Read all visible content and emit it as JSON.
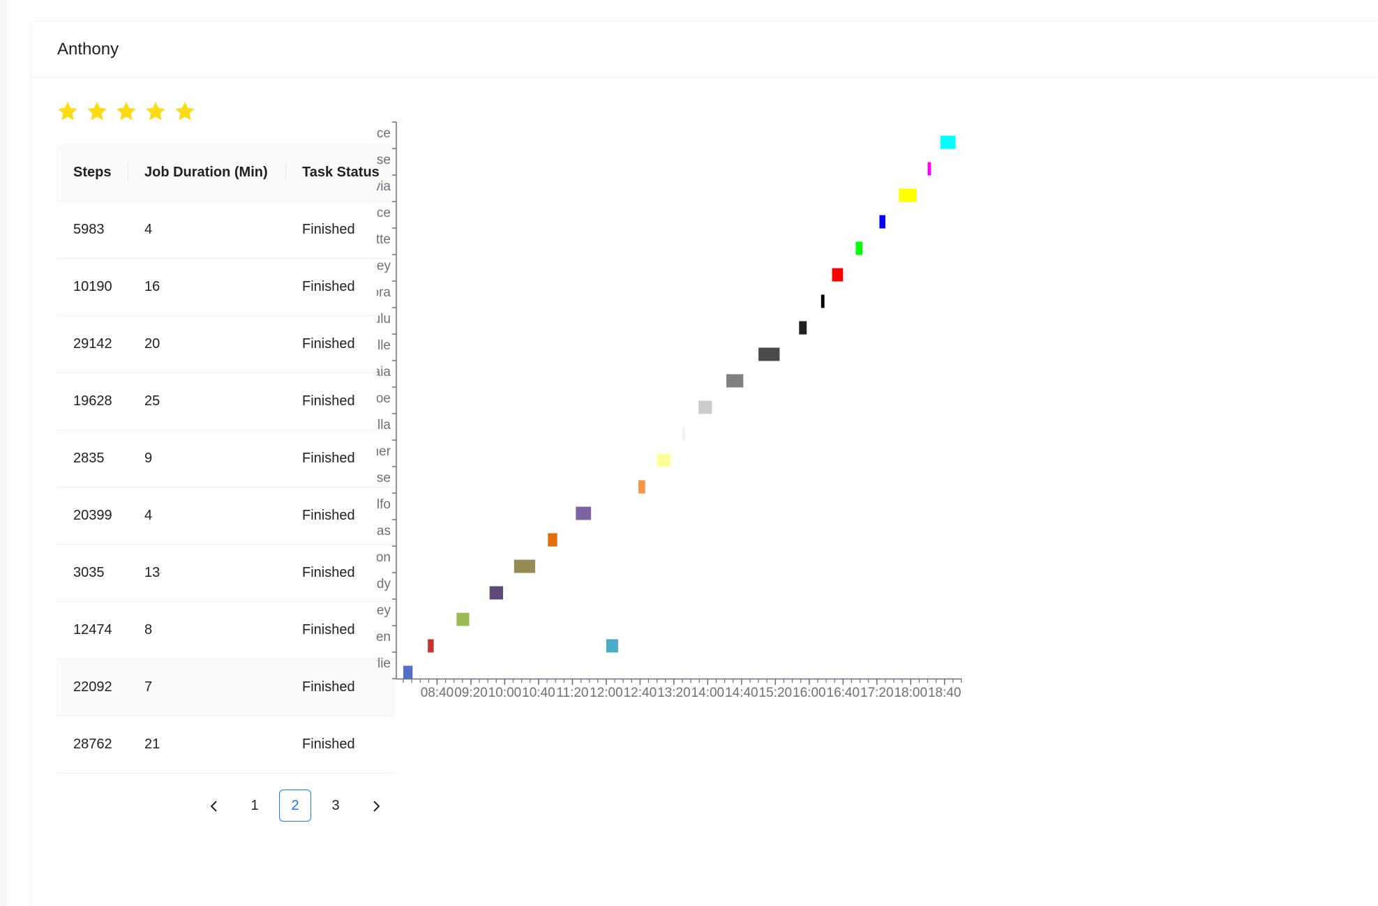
{
  "card": {
    "title": "Anthony"
  },
  "rating": {
    "value": 5,
    "max": 5,
    "color": "#fadb14"
  },
  "table": {
    "columns": [
      "Steps",
      "Job Duration (Min)",
      "Task Status"
    ],
    "rows": [
      [
        "5983",
        "4",
        "Finished"
      ],
      [
        "10190",
        "16",
        "Finished"
      ],
      [
        "29142",
        "20",
        "Finished"
      ],
      [
        "19628",
        "25",
        "Finished"
      ],
      [
        "2835",
        "9",
        "Finished"
      ],
      [
        "20399",
        "4",
        "Finished"
      ],
      [
        "3035",
        "13",
        "Finished"
      ],
      [
        "12474",
        "8",
        "Finished"
      ],
      [
        "22092",
        "7",
        "Finished"
      ],
      [
        "28762",
        "21",
        "Finished"
      ]
    ]
  },
  "pagination": {
    "prev_icon": "chevron-left-icon",
    "next_icon": "chevron-right-icon",
    "pages": [
      "1",
      "2",
      "3"
    ],
    "current": "2",
    "accent": "#1677ff"
  },
  "chart_data": {
    "type": "gantt",
    "categories": [
      "Karlie",
      "Alden",
      "Burley",
      "Brody",
      "Juston",
      "Elias",
      "Arnulfo",
      "Marquise",
      "Summer",
      "Rozella",
      "Monroe",
      "Kaia",
      "Nelle",
      "Lulu",
      "Nora",
      "Torey",
      "Lisette",
      "Beatrice",
      "Octavia",
      "Heloise",
      "Burnice"
    ],
    "x_tick_labels": [
      "08:40",
      "09:20",
      "10:00",
      "10:40",
      "11:20",
      "12:00",
      "12:40",
      "13:20",
      "14:00",
      "14:40",
      "15:20",
      "16:00",
      "16:40",
      "17:20",
      "18:00",
      "18:40"
    ],
    "x_range": [
      "08:00",
      "19:00"
    ],
    "bars": [
      {
        "category": "Karlie",
        "start": "08:00",
        "end": "08:11",
        "color": "#5470c6"
      },
      {
        "category": "Alden",
        "start": "08:29",
        "end": "08:36",
        "color": "#c23531"
      },
      {
        "category": "Alden",
        "start": "12:00",
        "end": "12:14",
        "color": "#4bacc6"
      },
      {
        "category": "Burley",
        "start": "09:03",
        "end": "09:18",
        "color": "#9bbb59"
      },
      {
        "category": "Brody",
        "start": "09:42",
        "end": "09:58",
        "color": "#604a7b"
      },
      {
        "category": "Juston",
        "start": "10:11",
        "end": "10:36",
        "color": "#948a54"
      },
      {
        "category": "Elias",
        "start": "10:51",
        "end": "11:02",
        "color": "#e46c0a"
      },
      {
        "category": "Arnulfo",
        "start": "11:24",
        "end": "11:42",
        "color": "#8064a2"
      },
      {
        "category": "Marquise",
        "start": "12:38",
        "end": "12:46",
        "color": "#f79646"
      },
      {
        "category": "Summer",
        "start": "13:00",
        "end": "13:16",
        "color": "#ffff99"
      },
      {
        "category": "Rozella",
        "start": "13:30",
        "end": "13:33",
        "color": "#f2f2f2"
      },
      {
        "category": "Monroe",
        "start": "13:49",
        "end": "14:05",
        "color": "#cccccc"
      },
      {
        "category": "Kaia",
        "start": "14:22",
        "end": "14:42",
        "color": "#808080"
      },
      {
        "category": "Nelle",
        "start": "15:00",
        "end": "15:25",
        "color": "#4a4a4a"
      },
      {
        "category": "Lulu",
        "start": "15:48",
        "end": "15:57",
        "color": "#222222"
      },
      {
        "category": "Nora",
        "start": "16:14",
        "end": "16:18",
        "color": "#000000"
      },
      {
        "category": "Torey",
        "start": "16:27",
        "end": "16:40",
        "color": "#ff0000"
      },
      {
        "category": "Lisette",
        "start": "16:55",
        "end": "17:03",
        "color": "#00ff00"
      },
      {
        "category": "Beatrice",
        "start": "17:23",
        "end": "17:30",
        "color": "#0000ff"
      },
      {
        "category": "Octavia",
        "start": "17:46",
        "end": "18:07",
        "color": "#ffff00"
      },
      {
        "category": "Heloise",
        "start": "18:20",
        "end": "18:24",
        "color": "#ff00ff"
      },
      {
        "category": "Burnice",
        "start": "18:35",
        "end": "18:53",
        "color": "#00ffff"
      }
    ],
    "grid": false,
    "legend": false,
    "axis_color": "#6e7079"
  }
}
